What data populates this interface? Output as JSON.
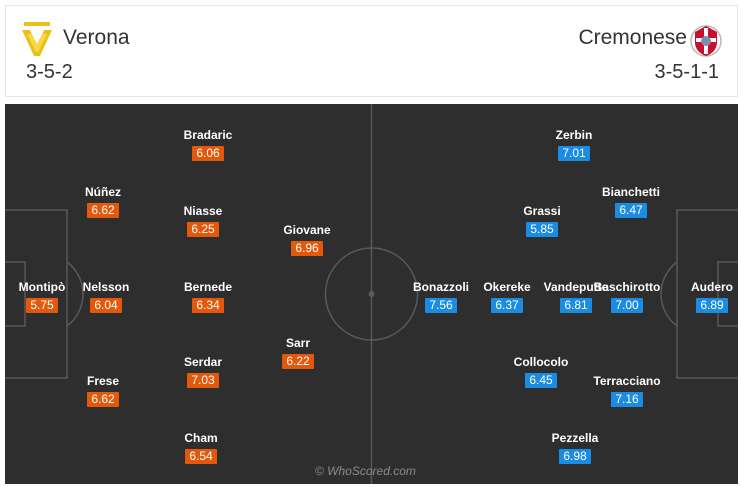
{
  "home": {
    "name": "Verona",
    "formation": "3-5-2",
    "logo_icon": "verona-crest-icon",
    "color": "#e4580b",
    "players": [
      {
        "name": "Montipò",
        "rating": "5.75"
      },
      {
        "name": "Núñez",
        "rating": "6.62"
      },
      {
        "name": "Nelsson",
        "rating": "6.04"
      },
      {
        "name": "Frese",
        "rating": "6.62"
      },
      {
        "name": "Bradaric",
        "rating": "6.06"
      },
      {
        "name": "Niasse",
        "rating": "6.25"
      },
      {
        "name": "Bernede",
        "rating": "6.34"
      },
      {
        "name": "Serdar",
        "rating": "7.03"
      },
      {
        "name": "Cham",
        "rating": "6.54"
      },
      {
        "name": "Giovane",
        "rating": "6.96"
      },
      {
        "name": "Sarr",
        "rating": "6.22"
      }
    ]
  },
  "away": {
    "name": "Cremonese",
    "formation": "3-5-1-1",
    "logo_icon": "cremonese-crest-icon",
    "color": "#1a8ce1",
    "players": [
      {
        "name": "Audero",
        "rating": "6.89"
      },
      {
        "name": "Bianchetti",
        "rating": "6.47"
      },
      {
        "name": "Baschirotto",
        "rating": "7.00"
      },
      {
        "name": "Terracciano",
        "rating": "7.16"
      },
      {
        "name": "Zerbin",
        "rating": "7.01"
      },
      {
        "name": "Grassi",
        "rating": "5.85"
      },
      {
        "name": "Vandeputte",
        "rating": "6.81"
      },
      {
        "name": "Okereke",
        "rating": "6.37"
      },
      {
        "name": "Collocolo",
        "rating": "6.45"
      },
      {
        "name": "Pezzella",
        "rating": "6.98"
      },
      {
        "name": "Bonazzoli",
        "rating": "7.56"
      }
    ]
  },
  "watermark": "© WhoScored.com"
}
